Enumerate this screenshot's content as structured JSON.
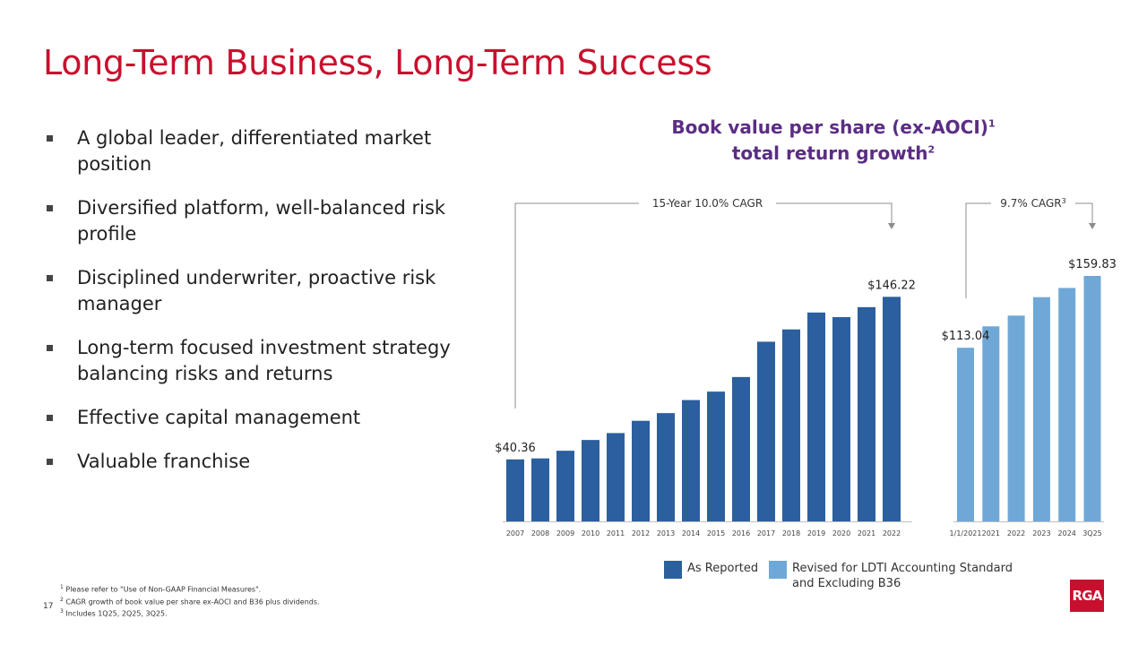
{
  "slide": {
    "title": "Long-Term Business, Long-Term Success",
    "page_number": "17",
    "logo_text": "RGA"
  },
  "bullets": [
    "A global leader, differentiated market position",
    "Diversified platform, well-balanced risk profile",
    "Disciplined underwriter, proactive risk manager",
    "Long-term focused investment strategy balancing risks and returns",
    "Effective capital management",
    "Valuable franchise"
  ],
  "footnotes": [
    {
      "mark": "1",
      "text": "Please refer to \"Use of Non-GAAP Financial Measures\"."
    },
    {
      "mark": "2",
      "text": "CAGR growth of book value per share ex-AOCI and B36 plus dividends."
    },
    {
      "mark": "3",
      "text": "Includes 1Q25, 2Q25, 3Q25."
    }
  ],
  "colors": {
    "title_red": "#c8102e",
    "chart_title_purple": "#5b2d84",
    "as_reported_blue": "#2b5f9e",
    "revised_blue": "#6fa8d6"
  },
  "chart_data": {
    "type": "bar",
    "title": {
      "line1": "Book value per share (ex-AOCI)",
      "line1_sup": "1",
      "line2": "total return growth",
      "line2_sup": "2"
    },
    "legend_position": "bottom",
    "legend": [
      {
        "name": "As Reported",
        "color": "#2b5f9e"
      },
      {
        "name": "Revised for LDTI Accounting Standard and Excluding B36",
        "color": "#6fa8d6"
      }
    ],
    "ylim": [
      0,
      175
    ],
    "grid": false,
    "panels": [
      {
        "series_name": "As Reported",
        "color": "#2b5f9e",
        "categories": [
          "2007",
          "2008",
          "2009",
          "2010",
          "2011",
          "2012",
          "2013",
          "2014",
          "2015",
          "2016",
          "2017",
          "2018",
          "2019",
          "2020",
          "2021",
          "2022"
        ],
        "values": [
          40.36,
          41,
          46,
          53,
          57.5,
          65.5,
          70.5,
          79,
          84.5,
          94,
          117,
          125,
          136,
          133,
          139.5,
          146.22
        ],
        "labels": {
          "0": "$40.36",
          "15": "$146.22"
        },
        "cagr_text": "15-Year 10.0% CAGR",
        "cagr_sup": ""
      },
      {
        "series_name": "Revised for LDTI Accounting Standard and Excluding B36",
        "color": "#6fa8d6",
        "categories": [
          "1/1/2021",
          "2021",
          "2022",
          "2023",
          "2024",
          "3Q25"
        ],
        "values": [
          113.04,
          127,
          134,
          146,
          152,
          159.83
        ],
        "labels": {
          "0": "$113.04",
          "5": "$159.83"
        },
        "cagr_text": "9.7% CAGR",
        "cagr_sup": "3"
      }
    ]
  }
}
